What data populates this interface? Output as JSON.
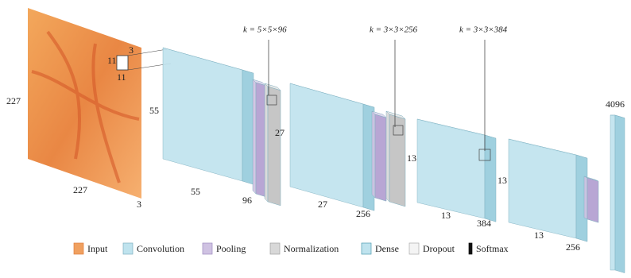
{
  "dims": {
    "input_h": "227",
    "input_w": "227",
    "input_c": "3",
    "kernel_a": "11",
    "kernel_b": "11",
    "kernel_c": "3",
    "conv1_h": "55",
    "conv1_w": "55",
    "conv1_c": "96",
    "pool1_h": "27",
    "conv2_w": "27",
    "conv2_c": "256",
    "pool2_h": "13",
    "conv3_w": "13",
    "conv3_c": "384",
    "conv4_h": "13",
    "conv4_w": "13",
    "conv4_c": "256",
    "dense": "4096"
  },
  "kernels": [
    "k = 5×5×96",
    "k = 3×3×256",
    "k = 3×3×384"
  ],
  "legend": [
    "Input",
    "Convolution",
    "Pooling",
    "Normalization",
    "Dense",
    "Dropout",
    "Softmax"
  ]
}
